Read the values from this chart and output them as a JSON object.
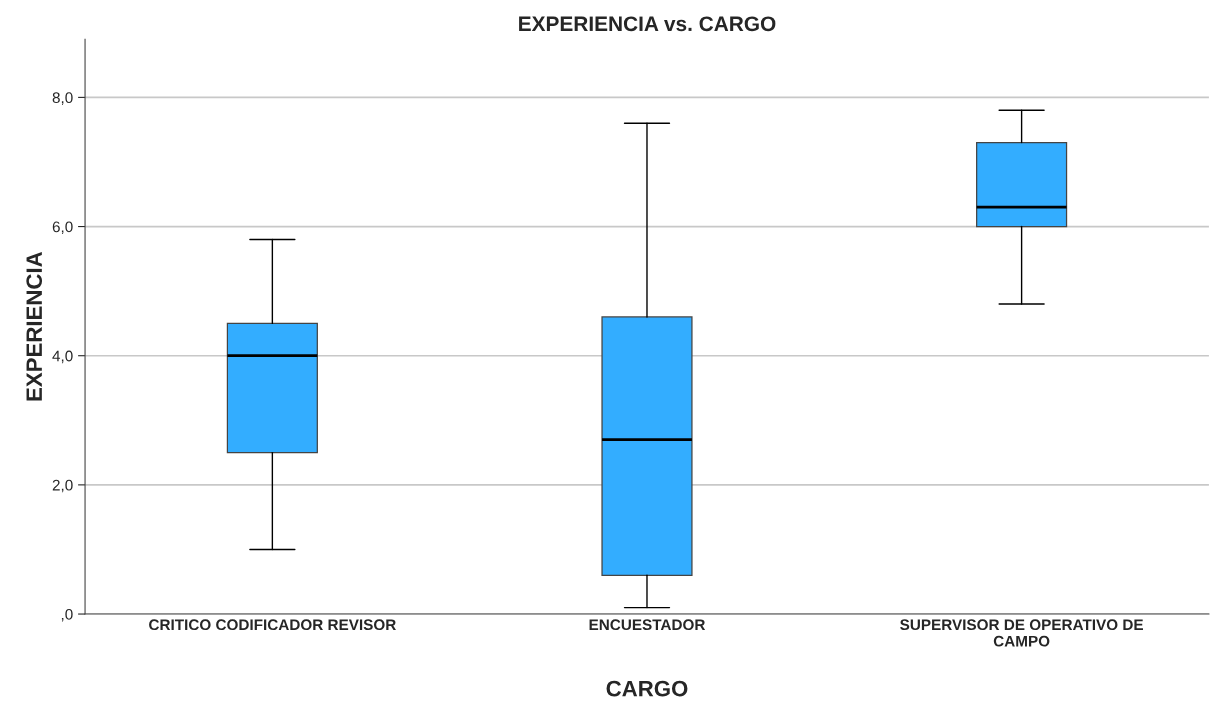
{
  "chart_data": {
    "type": "box",
    "title": "EXPERIENCIA vs. CARGO",
    "xlabel": "CARGO",
    "ylabel": "EXPERIENCIA",
    "categories": [
      "CRITICO CODIFICADOR REVISOR",
      "ENCUESTADOR",
      "SUPERVISOR DE OPERATIVO DE CAMPO"
    ],
    "boxes": [
      {
        "low": 1.0,
        "q1": 2.5,
        "median": 4.0,
        "q3": 4.5,
        "high": 5.8
      },
      {
        "low": 0.1,
        "q1": 0.6,
        "median": 2.7,
        "q3": 4.6,
        "high": 7.6
      },
      {
        "low": 4.8,
        "q1": 6.0,
        "median": 6.3,
        "q3": 7.3,
        "high": 7.8
      }
    ],
    "color": "#33adff",
    "ylim": [
      0,
      8.9
    ],
    "yticks": [
      {
        "value": 0,
        "label": ",0"
      },
      {
        "value": 2,
        "label": "2,0"
      },
      {
        "value": 4,
        "label": "4,0"
      },
      {
        "value": 6,
        "label": "6,0"
      },
      {
        "value": 8,
        "label": "8,0"
      }
    ],
    "grid": "y"
  }
}
